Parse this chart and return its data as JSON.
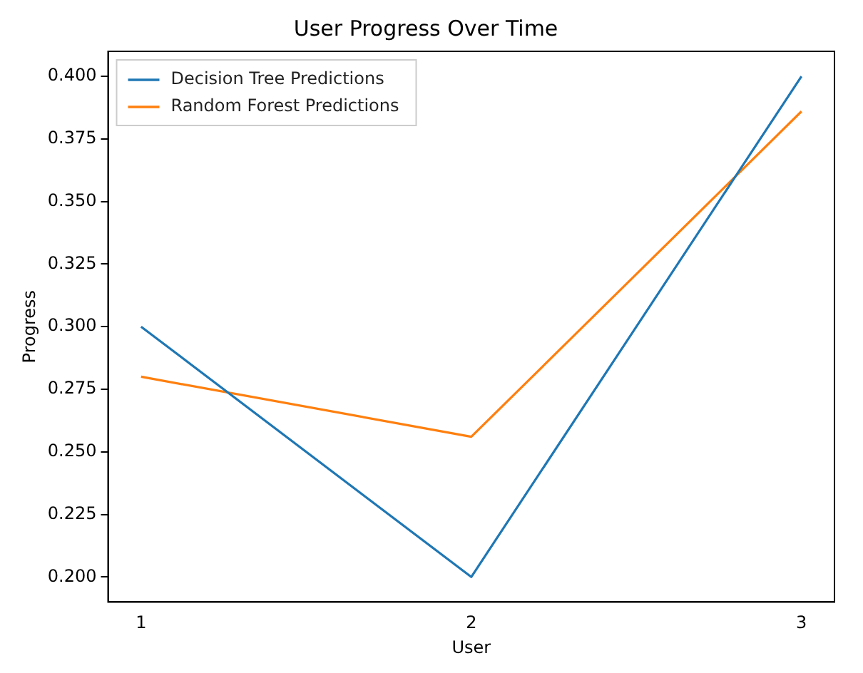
{
  "chart_data": {
    "type": "line",
    "title": "User Progress Over Time",
    "xlabel": "User",
    "ylabel": "Progress",
    "x": [
      1,
      2,
      3
    ],
    "series": [
      {
        "name": "Decision Tree Predictions",
        "color": "#1f77b4",
        "values": [
          0.3,
          0.2,
          0.4
        ]
      },
      {
        "name": "Random Forest Predictions",
        "color": "#ff7f0e",
        "values": [
          0.28,
          0.256,
          0.386
        ]
      }
    ],
    "xlim": [
      0.9,
      3.1
    ],
    "xticks": [
      1,
      2,
      3
    ],
    "ylim": [
      0.19,
      0.41
    ],
    "yticks": [
      {
        "value": 0.2,
        "label": "0.200"
      },
      0.225,
      {
        "value": 0.25,
        "label": "0.250"
      },
      0.275,
      {
        "value": 0.3,
        "label": "0.300"
      },
      0.325,
      {
        "value": 0.35,
        "label": "0.350"
      },
      0.375,
      {
        "value": 0.4,
        "label": "0.400"
      }
    ],
    "grid": false,
    "legend": "top left",
    "marker": "none",
    "line_style": "solid"
  }
}
